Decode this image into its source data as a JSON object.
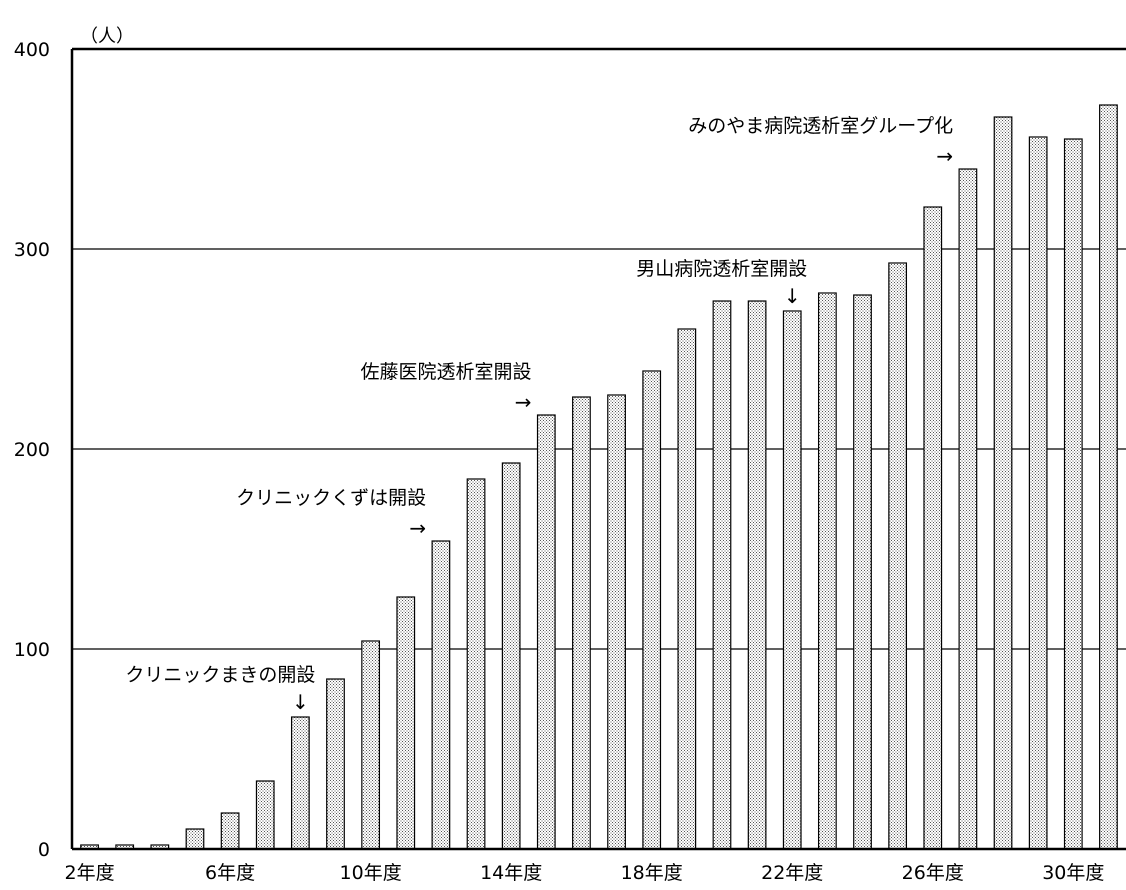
{
  "chart_data": {
    "type": "bar",
    "unit_label": "（人）",
    "categories": [
      "2年度",
      "3年度",
      "4年度",
      "5年度",
      "6年度",
      "7年度",
      "8年度",
      "9年度",
      "10年度",
      "11年度",
      "12年度",
      "13年度",
      "14年度",
      "15年度",
      "16年度",
      "17年度",
      "18年度",
      "19年度",
      "20年度",
      "21年度",
      "22年度",
      "23年度",
      "24年度",
      "25年度",
      "26年度",
      "27年度",
      "28年度",
      "29年度",
      "30年度",
      "31年度"
    ],
    "values": [
      2,
      2,
      2,
      10,
      18,
      34,
      66,
      85,
      104,
      126,
      154,
      185,
      193,
      217,
      226,
      227,
      239,
      260,
      274,
      274,
      269,
      278,
      277,
      293,
      321,
      340,
      366,
      356,
      355,
      372
    ],
    "x_tick_labels": [
      "2年度",
      "6年度",
      "10年度",
      "14年度",
      "18年度",
      "22年度",
      "26年度",
      "30年度"
    ],
    "y_ticks": [
      0,
      100,
      200,
      300,
      400
    ],
    "ylim": [
      0,
      400
    ],
    "grid": true,
    "annotations": [
      {
        "text": "クリニックまきの開設",
        "arrow": "↓",
        "category": "8年度"
      },
      {
        "text": "クリニックくずは開設",
        "arrow": "→",
        "category": "12年度"
      },
      {
        "text": "佐藤医院透析室開設",
        "arrow": "→",
        "category": "15年度"
      },
      {
        "text": "男山病院透析室開設",
        "arrow": "↓",
        "category": "22年度"
      },
      {
        "text": "みのやま病院透析室グループ化",
        "arrow": "→",
        "category": "27年度"
      }
    ],
    "colors": {
      "bar_fill": "#ffffff",
      "bar_dots": "#555555",
      "axis": "#000000",
      "grid": "#000000"
    }
  }
}
